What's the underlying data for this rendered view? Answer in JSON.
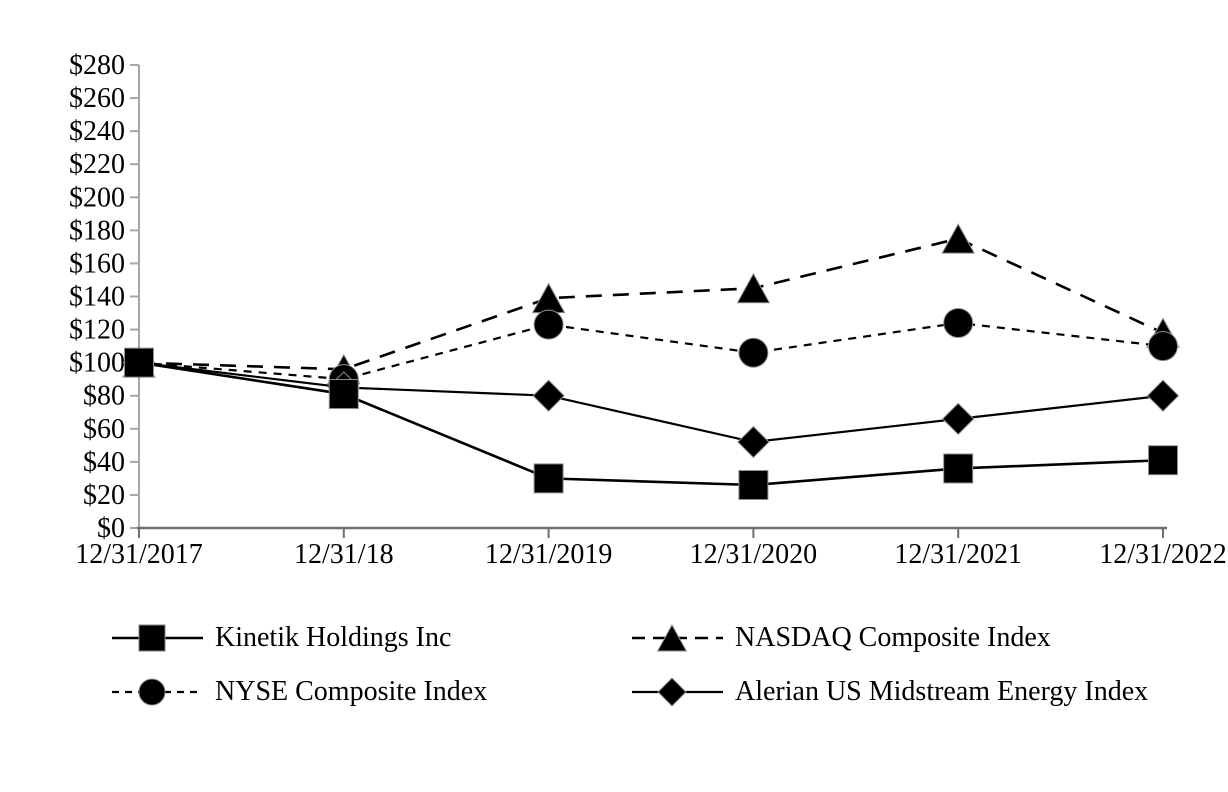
{
  "chart_data": {
    "type": "line",
    "title": "",
    "xlabel": "",
    "ylabel": "",
    "x": [
      "12/31/2017",
      "12/31/18",
      "12/31/2019",
      "12/31/2020",
      "12/31/2021",
      "12/31/2022"
    ],
    "series": [
      {
        "name": "Kinetik Holdings Inc",
        "marker": "square",
        "line": "solid",
        "values": [
          100,
          81,
          30,
          26,
          36,
          41
        ]
      },
      {
        "name": "NASDAQ Composite Index",
        "marker": "triangle",
        "line": "long-dash",
        "values": [
          100,
          96,
          139,
          145,
          175,
          118
        ]
      },
      {
        "name": "NYSE Composite Index",
        "marker": "circle",
        "line": "short-dash",
        "values": [
          100,
          90,
          123,
          106,
          124,
          110
        ]
      },
      {
        "name": "Alerian US Midstream Energy Index",
        "marker": "diamond",
        "line": "solid",
        "values": [
          100,
          85,
          80,
          52,
          66,
          80
        ]
      }
    ],
    "ylim": [
      0,
      280
    ],
    "ytick_step": 20,
    "ytick_labels": [
      "$280",
      "$260",
      "$240",
      "$220",
      "$200",
      "$180",
      "$160",
      "$140",
      "$120",
      "$100",
      "$80",
      "$60",
      "$40",
      "$20",
      "$0"
    ],
    "grid": false,
    "legend_position": "bottom",
    "colors": {
      "series": "#000000",
      "marker_edge": "#909090",
      "axis_y": "#a6a6a6",
      "axis_x": "#6e6e6e",
      "text": "#000000",
      "background": "#ffffff"
    }
  }
}
